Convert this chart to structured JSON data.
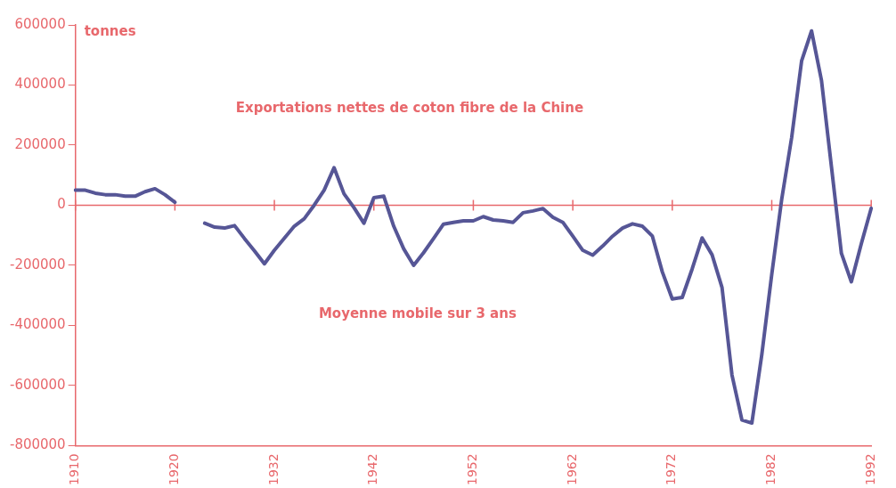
{
  "chart_data": {
    "type": "line",
    "title": "Exportations nettes de coton fibre de la Chine",
    "ylabel": "tonnes",
    "annotations": [
      "Moyenne mobile sur 3 ans"
    ],
    "categories": [
      "1910",
      null,
      null,
      null,
      null,
      null,
      null,
      null,
      null,
      null,
      "1920",
      null,
      null,
      null,
      null,
      null,
      null,
      null,
      null,
      null,
      "1932",
      null,
      null,
      null,
      null,
      null,
      null,
      null,
      null,
      null,
      "1942",
      null,
      null,
      null,
      null,
      null,
      null,
      null,
      null,
      null,
      "1952",
      null,
      null,
      null,
      null,
      null,
      null,
      null,
      null,
      null,
      "1962",
      null,
      null,
      null,
      null,
      null,
      null,
      null,
      null,
      null,
      "1972",
      null,
      null,
      null,
      null,
      null,
      null,
      null,
      null,
      null,
      "1982",
      null,
      null,
      null,
      null,
      null,
      null,
      null,
      null,
      null,
      "1992"
    ],
    "series": [
      {
        "color": "#565696",
        "values": [
          50000,
          50000,
          40000,
          35000,
          35000,
          30000,
          30000,
          45000,
          55000,
          35000,
          10000,
          null,
          null,
          -60000,
          -73000,
          -76000,
          -68000,
          -111000,
          -152000,
          -195000,
          -150000,
          -110000,
          -70000,
          -45000,
          0,
          50000,
          125000,
          38000,
          -8000,
          -60000,
          25000,
          30000,
          -70000,
          -145000,
          -200000,
          -158000,
          -111000,
          -63000,
          -57000,
          -52000,
          -52000,
          -38000,
          -49000,
          -52000,
          -57000,
          -25000,
          -19000,
          -11000,
          -40000,
          -57000,
          -103000,
          -150000,
          -166000,
          -136000,
          -103000,
          -76000,
          -62000,
          -70000,
          -103000,
          -222000,
          -312000,
          -307000,
          -212000,
          -109000,
          -165000,
          -274000,
          -565000,
          -715000,
          -725000,
          -497000,
          -230000,
          20000,
          225000,
          480000,
          580000,
          415000,
          128000,
          -160000,
          -255000,
          -128000,
          -10000
        ]
      }
    ],
    "ylim": [
      -800000,
      600000
    ],
    "yticks": [
      -800000,
      -600000,
      -400000,
      -200000,
      0,
      200000,
      400000,
      600000
    ],
    "ref_lines": [
      {
        "axis": "y",
        "value": 0,
        "color": "#e8686c"
      }
    ],
    "grid": false,
    "legend": false,
    "marker": "none",
    "line_style": "solid"
  }
}
